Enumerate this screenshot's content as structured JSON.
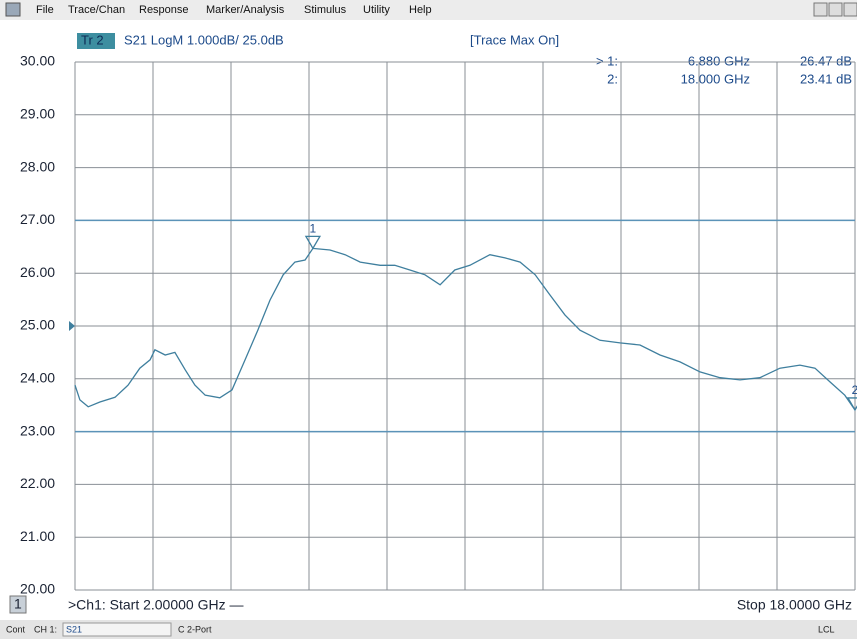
{
  "menu": [
    "File",
    "Trace/Chan",
    "Response",
    "Marker/Analysis",
    "Stimulus",
    "Utility",
    "Help"
  ],
  "trace_header": {
    "trace": "Tr 2",
    "format": "S21 LogM 1.000dB/ 25.0dB",
    "mode": "[Trace Max On]"
  },
  "marker_table": [
    [
      "> 1:",
      "6.880 GHz",
      "26.47 dB"
    ],
    [
      "2:",
      "18.000 GHz",
      "23.41 dB"
    ]
  ],
  "channel": {
    "number": "1",
    "start": ">Ch1: Start 2.00000 GHz —",
    "stop": "Stop 18.0000 GHz"
  },
  "status_bar": [
    "Cont",
    "CH 1:",
    "S21",
    "C 2-Port",
    "LCL"
  ],
  "chart_data": {
    "type": "line",
    "xlim": [
      2,
      18
    ],
    "ylim": [
      20,
      30
    ],
    "yticks": [
      {
        "value": 30,
        "label": "30.00"
      },
      {
        "value": 29,
        "label": "29.00"
      },
      {
        "value": 28,
        "label": "28.00"
      },
      {
        "value": 27,
        "label": "27.00"
      },
      {
        "value": 26,
        "label": "26.00"
      },
      {
        "value": 25,
        "label": "25.00"
      },
      {
        "value": 24,
        "label": "24.00"
      },
      {
        "value": 23,
        "label": "23.00"
      },
      {
        "value": 22,
        "label": "22.00"
      },
      {
        "value": 21,
        "label": "21.00"
      },
      {
        "value": 20,
        "label": "20.00"
      }
    ],
    "reference_lines": [
      27,
      23
    ],
    "x": [
      2.0,
      2.1,
      2.27,
      2.51,
      2.82,
      3.09,
      3.33,
      3.54,
      3.64,
      3.85,
      4.05,
      4.26,
      4.46,
      4.67,
      4.97,
      5.22,
      5.49,
      5.75,
      6.0,
      6.27,
      6.51,
      6.72,
      6.88,
      7.23,
      7.54,
      7.85,
      8.26,
      8.56,
      8.87,
      9.18,
      9.49,
      9.79,
      10.1,
      10.51,
      10.82,
      11.13,
      11.44,
      11.74,
      12.05,
      12.36,
      12.77,
      13.18,
      13.59,
      14.0,
      14.41,
      14.82,
      15.23,
      15.64,
      16.05,
      16.46,
      16.87,
      17.18,
      17.49,
      17.79,
      18.0
    ],
    "series": [
      {
        "name": "S21",
        "color": "#3f7f9e",
        "values": [
          23.88,
          23.6,
          23.47,
          23.56,
          23.65,
          23.88,
          24.2,
          24.36,
          24.55,
          24.45,
          24.5,
          24.17,
          23.88,
          23.69,
          23.64,
          23.79,
          24.36,
          24.92,
          25.49,
          25.97,
          26.21,
          26.25,
          26.47,
          26.44,
          26.35,
          26.21,
          26.15,
          26.15,
          26.06,
          25.97,
          25.78,
          26.06,
          26.15,
          26.35,
          26.29,
          26.21,
          25.97,
          25.59,
          25.21,
          24.92,
          24.73,
          24.68,
          24.64,
          24.45,
          24.32,
          24.13,
          24.02,
          23.98,
          24.02,
          24.2,
          24.26,
          24.2,
          23.94,
          23.69,
          23.41
        ]
      }
    ],
    "markers": [
      {
        "label": "1",
        "x": 6.88,
        "y": 26.47
      },
      {
        "label": "2",
        "x": 18,
        "y": 23.41
      }
    ]
  }
}
